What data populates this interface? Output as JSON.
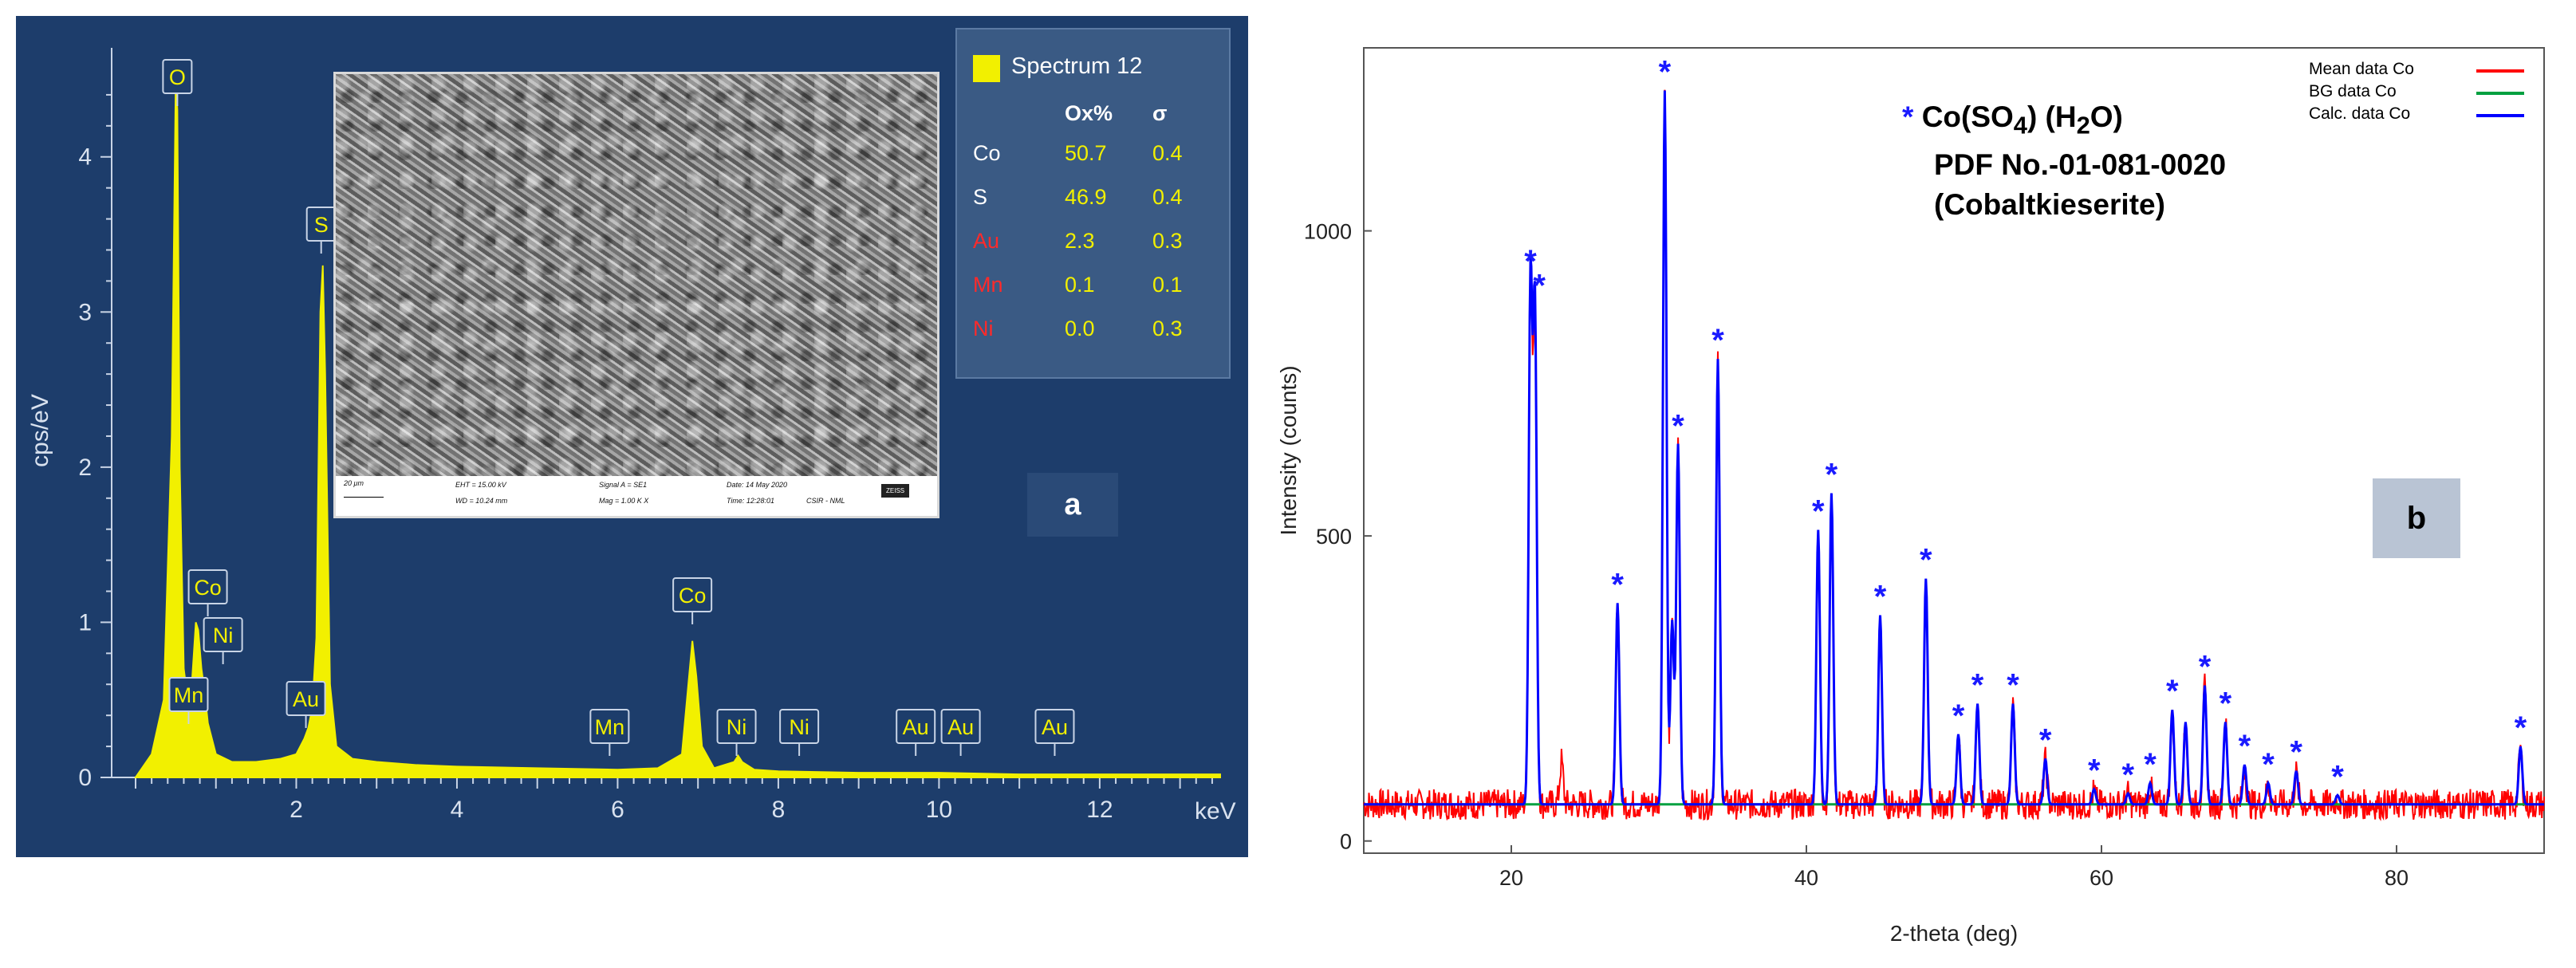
{
  "panel_a": {
    "tag": "a",
    "ylabel": "cps/eV",
    "xunit": "keV",
    "yticks": [
      "0",
      "1",
      "2",
      "3",
      "4"
    ],
    "xticks": [
      "2",
      "4",
      "6",
      "8",
      "10",
      "12"
    ],
    "peak_labels": [
      {
        "text": "O",
        "kev": 0.52
      },
      {
        "text": "S",
        "kev": 2.31
      },
      {
        "text": "Co",
        "kev": 0.78
      },
      {
        "text": "Ni",
        "kev": 0.85
      },
      {
        "text": "Mn",
        "kev": 0.64
      },
      {
        "text": "Au",
        "kev": 2.12
      },
      {
        "text": "Mn",
        "kev": 5.9
      },
      {
        "text": "Co",
        "kev": 6.93
      },
      {
        "text": "Ni",
        "kev": 7.48
      },
      {
        "text": "Ni",
        "kev": 8.26
      },
      {
        "text": "Au",
        "kev": 9.71
      },
      {
        "text": "Au",
        "kev": 10.27
      },
      {
        "text": "Au",
        "kev": 11.44
      }
    ],
    "spectrum_box": {
      "title": "Spectrum 12",
      "col1": "Ox%",
      "col2": "σ",
      "rows": [
        {
          "el": "Co",
          "ox": "50.7",
          "sigma": "0.4",
          "color": "#ffffff"
        },
        {
          "el": "S",
          "ox": "46.9",
          "sigma": "0.4",
          "color": "#ffffff"
        },
        {
          "el": "Au",
          "ox": "2.3",
          "sigma": "0.3",
          "color": "#ff2a2a"
        },
        {
          "el": "Mn",
          "ox": "0.1",
          "sigma": "0.1",
          "color": "#ff2a2a"
        },
        {
          "el": "Ni",
          "ox": "0.0",
          "sigma": "0.3",
          "color": "#ff2a2a"
        }
      ]
    },
    "sem_bar": {
      "scale": "20 μm",
      "eht": "EHT = 15.00 kV",
      "wd": "WD = 10.24 mm",
      "signal": "Signal A = SE1",
      "mag": "Mag =    1.00 K X",
      "date": "Date: 14 May 2020",
      "time": "Time: 12:28:01",
      "inst": "CSIR - NML",
      "logo": "ZEISS"
    },
    "colors": {
      "background": "#1d3d6b",
      "fill": "#f2f000"
    }
  },
  "chart_data": [
    {
      "type": "area",
      "title": "",
      "xlabel": "keV",
      "ylabel": "cps/eV",
      "xlim": [
        0,
        13.5
      ],
      "ylim": [
        0,
        4.6
      ],
      "series": [
        {
          "name": "Spectrum 12",
          "x": [
            0.0,
            0.2,
            0.35,
            0.45,
            0.5,
            0.52,
            0.55,
            0.6,
            0.65,
            0.7,
            0.75,
            0.78,
            0.82,
            0.86,
            0.9,
            1.0,
            1.2,
            1.5,
            1.8,
            2.0,
            2.1,
            2.15,
            2.2,
            2.25,
            2.3,
            2.33,
            2.36,
            2.42,
            2.5,
            2.7,
            3.0,
            3.5,
            4.0,
            5.0,
            6.0,
            6.5,
            6.8,
            6.88,
            6.93,
            6.98,
            7.05,
            7.2,
            7.45,
            7.5,
            7.55,
            7.7,
            8.0,
            9.0,
            10.0,
            11.0,
            12.0,
            13.5
          ],
          "values": [
            0.0,
            0.15,
            0.5,
            2.2,
            4.5,
            4.3,
            2.0,
            0.7,
            0.5,
            0.6,
            1.0,
            0.95,
            0.7,
            0.55,
            0.35,
            0.15,
            0.1,
            0.1,
            0.12,
            0.15,
            0.25,
            0.32,
            0.45,
            0.9,
            3.0,
            3.3,
            2.6,
            0.6,
            0.2,
            0.12,
            0.1,
            0.08,
            0.07,
            0.06,
            0.05,
            0.06,
            0.15,
            0.6,
            0.88,
            0.65,
            0.2,
            0.06,
            0.1,
            0.14,
            0.1,
            0.05,
            0.04,
            0.03,
            0.03,
            0.02,
            0.02,
            0.02
          ]
        }
      ]
    },
    {
      "type": "line",
      "title": "",
      "xlabel": "2-theta (deg)",
      "ylabel": "Intensity (counts)",
      "xlim": [
        10,
        90
      ],
      "ylim": [
        -20,
        1300
      ],
      "xticks": [
        20,
        40,
        60,
        80
      ],
      "yticks": [
        0,
        500,
        1000
      ],
      "legend_position": "top-right",
      "series": [
        {
          "name": "Mean data Co",
          "color": "#ff0000",
          "peaks": [
            [
              21.3,
              920
            ],
            [
              21.6,
              860
            ],
            [
              23.4,
              130
            ],
            [
              27.2,
              380
            ],
            [
              30.4,
              1220
            ],
            [
              30.9,
              350
            ],
            [
              31.3,
              640
            ],
            [
              34.0,
              780
            ],
            [
              40.8,
              500
            ],
            [
              41.7,
              560
            ],
            [
              45.0,
              360
            ],
            [
              48.1,
              420
            ],
            [
              50.3,
              170
            ],
            [
              51.6,
              220
            ],
            [
              54.0,
              220
            ],
            [
              56.2,
              130
            ],
            [
              59.5,
              80
            ],
            [
              61.8,
              75
            ],
            [
              63.3,
              90
            ],
            [
              64.8,
              210
            ],
            [
              65.7,
              190
            ],
            [
              67.0,
              250
            ],
            [
              68.4,
              190
            ],
            [
              69.7,
              120
            ],
            [
              71.3,
              90
            ],
            [
              73.2,
              110
            ],
            [
              76.0,
              70
            ],
            [
              88.4,
              150
            ]
          ]
        },
        {
          "name": "BG data Co",
          "color": "#00a040",
          "values": [
            [
              10,
              60
            ],
            [
              90,
              60
            ]
          ]
        },
        {
          "name": "Calc. data Co",
          "color": "#0000ff",
          "peaks": [
            [
              21.3,
              920
            ],
            [
              21.6,
              880
            ],
            [
              27.2,
              390
            ],
            [
              30.4,
              1230
            ],
            [
              30.9,
              360
            ],
            [
              31.3,
              650
            ],
            [
              34.0,
              790
            ],
            [
              40.8,
              510
            ],
            [
              41.7,
              570
            ],
            [
              45.0,
              370
            ],
            [
              48.1,
              430
            ],
            [
              50.3,
              175
            ],
            [
              51.6,
              225
            ],
            [
              54.0,
              225
            ],
            [
              56.2,
              135
            ],
            [
              59.5,
              85
            ],
            [
              61.8,
              78
            ],
            [
              63.3,
              95
            ],
            [
              64.8,
              215
            ],
            [
              65.7,
              195
            ],
            [
              67.0,
              255
            ],
            [
              68.4,
              195
            ],
            [
              69.7,
              125
            ],
            [
              71.3,
              95
            ],
            [
              73.2,
              115
            ],
            [
              76.0,
              75
            ],
            [
              88.4,
              155
            ]
          ]
        }
      ],
      "star_marker_x": [
        21.3,
        21.9,
        27.2,
        30.4,
        31.3,
        34.0,
        40.8,
        41.7,
        45.0,
        48.1,
        50.3,
        51.6,
        54.0,
        56.2,
        59.5,
        61.8,
        63.3,
        64.8,
        67.0,
        68.4,
        69.7,
        71.3,
        73.2,
        76.0,
        88.4
      ]
    }
  ],
  "panel_b": {
    "tag": "b",
    "star": "*",
    "phase_name": "Co(SO",
    "phase_sub1": "4",
    "phase_mid": ") (H",
    "phase_sub2": "2",
    "phase_end": "O)",
    "pdf": "PDF No.-01-081-0020",
    "mineral": "(Cobaltkieserite)",
    "legend": [
      "Mean data Co",
      "BG data Co",
      "Calc. data Co"
    ],
    "legend_colors": [
      "#ff0000",
      "#00a040",
      "#0000ff"
    ]
  }
}
